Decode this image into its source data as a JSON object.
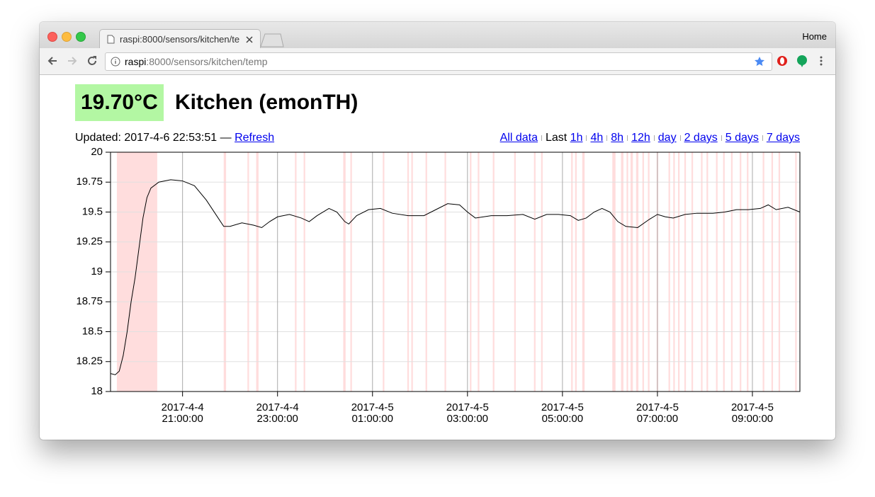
{
  "browser": {
    "tab_title": "raspi:8000/sensors/kitchen/te",
    "home": "Home",
    "url_host": "raspi",
    "url_path": ":8000/sensors/kitchen/temp"
  },
  "page": {
    "reading": "19.70°C",
    "heading": "Kitchen (emonTH)",
    "updated": "Updated: 2017-4-6 22:53:51 —",
    "refresh": "Refresh",
    "all_data": "All data",
    "last": "Last",
    "ranges": [
      "1h",
      "4h",
      "8h",
      "12h",
      "day",
      "2 days",
      "5 days",
      "7 days"
    ]
  },
  "chart_data": {
    "type": "line",
    "color": "#000000",
    "band_color": "#ffdddd",
    "grid": true,
    "x": [
      "2017-4-4 19:29",
      "2017-4-4 19:35",
      "2017-4-4 19:40",
      "2017-4-4 19:45",
      "2017-4-4 19:50",
      "2017-4-4 19:55",
      "2017-4-4 20:00",
      "2017-4-4 20:05",
      "2017-4-4 20:10",
      "2017-4-4 20:15",
      "2017-4-4 20:20",
      "2017-4-4 20:30",
      "2017-4-4 20:45",
      "2017-4-4 21:00",
      "2017-4-4 21:15",
      "2017-4-4 21:30",
      "2017-4-4 21:45",
      "2017-4-4 21:52",
      "2017-4-4 22:00",
      "2017-4-4 22:15",
      "2017-4-4 22:30",
      "2017-4-4 22:40",
      "2017-4-4 22:50",
      "2017-4-4 23:00",
      "2017-4-4 23:15",
      "2017-4-4 23:30",
      "2017-4-4 23:40",
      "2017-4-4 23:50",
      "2017-4-5 00:05",
      "2017-4-5 00:15",
      "2017-4-5 00:25",
      "2017-4-5 00:30",
      "2017-4-5 00:40",
      "2017-4-5 00:55",
      "2017-4-5 01:10",
      "2017-4-5 01:25",
      "2017-4-5 01:45",
      "2017-4-5 02:05",
      "2017-4-5 02:20",
      "2017-4-5 02:35",
      "2017-4-5 02:50",
      "2017-4-5 03:00",
      "2017-4-5 03:10",
      "2017-4-5 03:30",
      "2017-4-5 03:50",
      "2017-4-5 04:10",
      "2017-4-5 04:25",
      "2017-4-5 04:40",
      "2017-4-5 04:55",
      "2017-4-5 05:10",
      "2017-4-5 05:20",
      "2017-4-5 05:30",
      "2017-4-5 05:40",
      "2017-4-5 05:50",
      "2017-4-5 06:00",
      "2017-4-5 06:10",
      "2017-4-5 06:20",
      "2017-4-5 06:35",
      "2017-4-5 06:50",
      "2017-4-5 07:00",
      "2017-4-5 07:10",
      "2017-4-5 07:20",
      "2017-4-5 07:35",
      "2017-4-5 07:50",
      "2017-4-5 08:10",
      "2017-4-5 08:25",
      "2017-4-5 08:40",
      "2017-4-5 08:55",
      "2017-4-5 09:10",
      "2017-4-5 09:20",
      "2017-4-5 09:30",
      "2017-4-5 09:45",
      "2017-4-5 10:00"
    ],
    "values": [
      18.15,
      18.14,
      18.17,
      18.3,
      18.5,
      18.75,
      18.95,
      19.2,
      19.45,
      19.62,
      19.7,
      19.75,
      19.77,
      19.76,
      19.72,
      19.6,
      19.45,
      19.38,
      19.38,
      19.41,
      19.39,
      19.37,
      19.42,
      19.46,
      19.48,
      19.45,
      19.42,
      19.47,
      19.53,
      19.5,
      19.42,
      19.4,
      19.47,
      19.52,
      19.53,
      19.49,
      19.47,
      19.47,
      19.52,
      19.57,
      19.56,
      19.5,
      19.45,
      19.47,
      19.47,
      19.48,
      19.44,
      19.48,
      19.48,
      19.47,
      19.43,
      19.45,
      19.5,
      19.53,
      19.5,
      19.42,
      19.38,
      19.37,
      19.44,
      19.48,
      19.46,
      19.45,
      19.48,
      19.49,
      19.49,
      19.5,
      19.52,
      19.52,
      19.53,
      19.56,
      19.52,
      19.54,
      19.5
    ],
    "bands": [
      [
        "2017-4-4 19:37",
        "2017-4-4 20:28"
      ],
      [
        "2017-4-4 21:52",
        "2017-4-4 21:55"
      ],
      [
        "2017-4-4 22:22",
        "2017-4-4 22:24"
      ],
      [
        "2017-4-4 22:33",
        "2017-4-4 22:36"
      ],
      [
        "2017-4-4 23:22",
        "2017-4-4 23:24"
      ],
      [
        "2017-4-4 23:33",
        "2017-4-4 23:35"
      ],
      [
        "2017-4-5 00:23",
        "2017-4-5 00:26"
      ],
      [
        "2017-4-5 00:32",
        "2017-4-5 00:34"
      ],
      [
        "2017-4-5 01:13",
        "2017-4-5 01:15"
      ],
      [
        "2017-4-5 01:44",
        "2017-4-5 01:46"
      ],
      [
        "2017-4-5 01:49",
        "2017-4-5 01:51"
      ],
      [
        "2017-4-5 02:07",
        "2017-4-5 02:09"
      ],
      [
        "2017-4-5 02:31",
        "2017-4-5 02:33"
      ],
      [
        "2017-4-5 03:03",
        "2017-4-5 03:05"
      ],
      [
        "2017-4-5 03:13",
        "2017-4-5 03:15"
      ],
      [
        "2017-4-5 03:32",
        "2017-4-5 03:34"
      ],
      [
        "2017-4-5 03:59",
        "2017-4-5 04:01"
      ],
      [
        "2017-4-5 04:24",
        "2017-4-5 04:26"
      ],
      [
        "2017-4-5 04:33",
        "2017-4-5 04:35"
      ],
      [
        "2017-4-5 05:11",
        "2017-4-5 05:13"
      ],
      [
        "2017-4-5 05:16",
        "2017-4-5 05:18"
      ],
      [
        "2017-4-5 05:25",
        "2017-4-5 05:28"
      ],
      [
        "2017-4-5 06:03",
        "2017-4-5 06:07"
      ],
      [
        "2017-4-5 06:14",
        "2017-4-5 06:17"
      ],
      [
        "2017-4-5 06:21",
        "2017-4-5 06:23"
      ],
      [
        "2017-4-5 06:26",
        "2017-4-5 06:29"
      ],
      [
        "2017-4-5 06:33",
        "2017-4-5 06:36"
      ],
      [
        "2017-4-5 06:41",
        "2017-4-5 06:43"
      ],
      [
        "2017-4-5 06:48",
        "2017-4-5 06:50"
      ],
      [
        "2017-4-5 06:59",
        "2017-4-5 07:01"
      ],
      [
        "2017-4-5 07:14",
        "2017-4-5 07:16"
      ],
      [
        "2017-4-5 07:20",
        "2017-4-5 07:22"
      ],
      [
        "2017-4-5 07:26",
        "2017-4-5 07:28"
      ],
      [
        "2017-4-5 07:34",
        "2017-4-5 07:36"
      ],
      [
        "2017-4-5 07:43",
        "2017-4-5 07:45"
      ],
      [
        "2017-4-5 07:55",
        "2017-4-5 07:57"
      ],
      [
        "2017-4-5 08:02",
        "2017-4-5 08:04"
      ],
      [
        "2017-4-5 08:14",
        "2017-4-5 08:16"
      ],
      [
        "2017-4-5 08:23",
        "2017-4-5 08:25"
      ],
      [
        "2017-4-5 08:33",
        "2017-4-5 08:35"
      ],
      [
        "2017-4-5 08:44",
        "2017-4-5 08:46"
      ],
      [
        "2017-4-5 08:53",
        "2017-4-5 08:55"
      ],
      [
        "2017-4-5 09:13",
        "2017-4-5 09:15"
      ],
      [
        "2017-4-5 09:24",
        "2017-4-5 09:26"
      ],
      [
        "2017-4-5 09:33",
        "2017-4-5 09:35"
      ],
      [
        "2017-4-5 09:54",
        "2017-4-5 09:56"
      ]
    ],
    "xlim": [
      "2017-4-4 19:29:00",
      "2017-4-5 10:00:00"
    ],
    "xticks": [
      "2017-4-4 21:00:00",
      "2017-4-4 23:00:00",
      "2017-4-5 01:00:00",
      "2017-4-5 03:00:00",
      "2017-4-5 05:00:00",
      "2017-4-5 07:00:00",
      "2017-4-5 09:00:00"
    ],
    "ylim": [
      18,
      20
    ],
    "yticks": [
      18,
      18.25,
      18.5,
      18.75,
      19,
      19.25,
      19.5,
      19.75,
      20
    ]
  }
}
